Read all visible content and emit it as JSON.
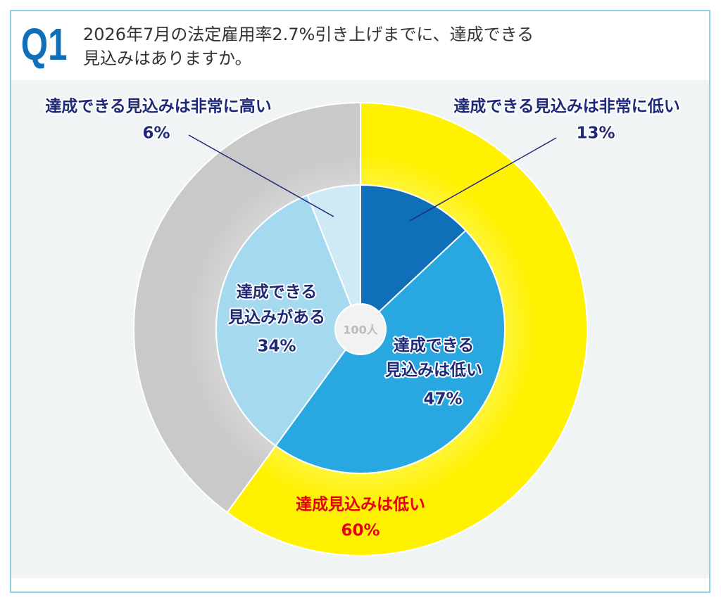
{
  "chart_data": {
    "type": "pie",
    "badge": "Q1",
    "title_lines": [
      "2026年7月の法定雇用率2.7%引き上げまでに、達成できる",
      "見込みはありますか。"
    ],
    "center_label": "100人",
    "inner": {
      "categories": [
        [
          "達成できる見込みは非常に低い"
        ],
        [
          "達成できる",
          "見込みは低い"
        ],
        [
          "達成できる",
          "見込みがある"
        ],
        [
          "達成できる見込みは非常に高い"
        ]
      ],
      "values": [
        13,
        47,
        34,
        6
      ],
      "value_labels": [
        "13%",
        "47%",
        "34%",
        "6%"
      ],
      "colors": [
        "#0f6fb8",
        "#29a7e1",
        "#a5d9ef",
        "#cdeaf5"
      ]
    },
    "outer": {
      "categories": [
        "達成見込みは低い",
        null
      ],
      "values": [
        60,
        40
      ],
      "value_labels": [
        "60%",
        null
      ],
      "colors": [
        "#fff100",
        "#c9c9c9"
      ]
    }
  }
}
